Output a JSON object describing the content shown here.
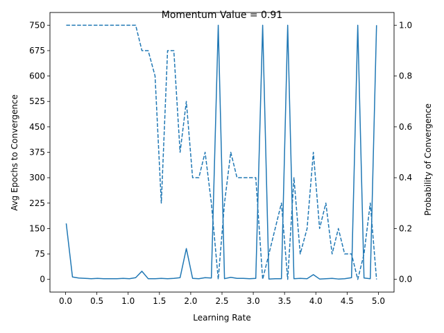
{
  "chart_data": {
    "type": "line",
    "title": "Momentum Value = 0.91",
    "xlabel": "Learning Rate",
    "ylabel_left": "Avg Epochs to Convergence",
    "ylabel_right": "Probability of Convergence",
    "x_ticks": [
      "0.0",
      "0.5",
      "1.0",
      "1.5",
      "2.0",
      "2.5",
      "3.0",
      "3.5",
      "4.0",
      "4.5",
      "5.0"
    ],
    "y_left_ticks": [
      "0",
      "75",
      "150",
      "225",
      "300",
      "375",
      "450",
      "525",
      "600",
      "675",
      "750"
    ],
    "y_right_ticks": [
      "0.0",
      "0.2",
      "0.4",
      "0.6",
      "0.8",
      "1.0"
    ],
    "xlim": [
      -0.25,
      5.25
    ],
    "ylim_left": [
      -37.5,
      787.5
    ],
    "ylim_right": [
      -0.05,
      1.05
    ],
    "grid": false,
    "color": "#1f77b4",
    "x": [
      0.01,
      0.11,
      0.21,
      0.31,
      0.41,
      0.51,
      0.61,
      0.72,
      0.82,
      0.92,
      1.02,
      1.12,
      1.22,
      1.32,
      1.43,
      1.53,
      1.63,
      1.73,
      1.83,
      1.93,
      2.03,
      2.13,
      2.23,
      2.33,
      2.44,
      2.54,
      2.64,
      2.74,
      2.84,
      2.94,
      3.04,
      3.15,
      3.25,
      3.35,
      3.45,
      3.55,
      3.65,
      3.75,
      3.86,
      3.96,
      4.06,
      4.16,
      4.26,
      4.36,
      4.46,
      4.57,
      4.67,
      4.77,
      4.87,
      4.97
    ],
    "series": [
      {
        "axis": "left",
        "style": "solid",
        "values": [
          165,
          7,
          4,
          3,
          2,
          3,
          2,
          2,
          2,
          3,
          2,
          5,
          24,
          2,
          2,
          3,
          2,
          3,
          5,
          91,
          3,
          2,
          5,
          4,
          750,
          2,
          6,
          3,
          3,
          2,
          3,
          750,
          1,
          2,
          2,
          750,
          2,
          3,
          2,
          14,
          1,
          2,
          3,
          1,
          2,
          5,
          750,
          4,
          2,
          750
        ]
      },
      {
        "axis": "right",
        "style": "dashed",
        "values": [
          1.0,
          1.0,
          1.0,
          1.0,
          1.0,
          1.0,
          1.0,
          1.0,
          1.0,
          1.0,
          1.0,
          1.0,
          0.9,
          0.9,
          0.8,
          0.3,
          0.9,
          0.9,
          0.5,
          0.7,
          0.4,
          0.4,
          0.5,
          0.3,
          0.0,
          0.3,
          0.5,
          0.4,
          0.4,
          0.4,
          0.4,
          0.0,
          0.1,
          0.2,
          0.3,
          0.0,
          0.4,
          0.1,
          0.2,
          0.5,
          0.2,
          0.3,
          0.1,
          0.2,
          0.1,
          0.1,
          0.0,
          0.1,
          0.3,
          0.0
        ]
      }
    ]
  }
}
